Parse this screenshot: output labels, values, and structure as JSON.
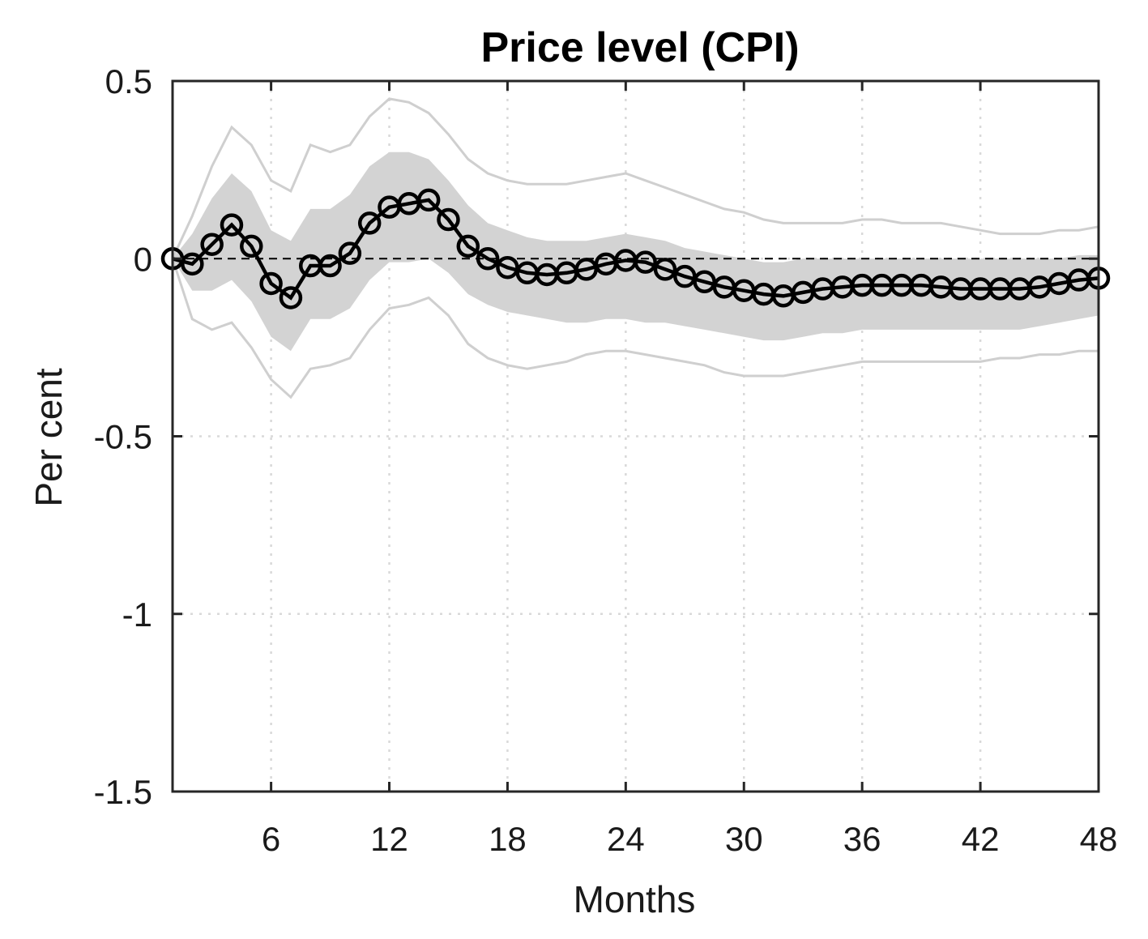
{
  "chart_data": {
    "type": "line",
    "title": "Price level (CPI)",
    "xlabel": "Months",
    "ylabel": "Per cent",
    "xlim": [
      1,
      48
    ],
    "ylim": [
      -1.5,
      0.5
    ],
    "xticks": [
      6,
      12,
      18,
      24,
      30,
      36,
      42,
      48
    ],
    "yticks": [
      0.5,
      0,
      -0.5,
      -1,
      -1.5
    ],
    "ytick_labels": [
      "0.5",
      "0",
      "-0.5",
      "-1",
      "-1.5"
    ],
    "grid": true,
    "zero_line": 0,
    "x": [
      1,
      2,
      3,
      4,
      5,
      6,
      7,
      8,
      9,
      10,
      11,
      12,
      13,
      14,
      15,
      16,
      17,
      18,
      19,
      20,
      21,
      22,
      23,
      24,
      25,
      26,
      27,
      28,
      29,
      30,
      31,
      32,
      33,
      34,
      35,
      36,
      37,
      38,
      39,
      40,
      41,
      42,
      43,
      44,
      45,
      46,
      47,
      48
    ],
    "series": [
      {
        "name": "point estimate",
        "marker": "circle",
        "values": [
          0.0,
          -0.015,
          0.04,
          0.095,
          0.035,
          -0.07,
          -0.11,
          -0.02,
          -0.02,
          0.015,
          0.1,
          0.145,
          0.155,
          0.165,
          0.11,
          0.035,
          0.0,
          -0.025,
          -0.04,
          -0.045,
          -0.04,
          -0.03,
          -0.015,
          -0.005,
          -0.01,
          -0.03,
          -0.05,
          -0.065,
          -0.08,
          -0.09,
          -0.1,
          -0.105,
          -0.095,
          -0.085,
          -0.08,
          -0.075,
          -0.075,
          -0.075,
          -0.075,
          -0.08,
          -0.085,
          -0.085,
          -0.085,
          -0.085,
          -0.08,
          -0.07,
          -0.06,
          -0.055
        ]
      },
      {
        "name": "inner band upper",
        "values": [
          0.0,
          0.07,
          0.17,
          0.24,
          0.19,
          0.08,
          0.05,
          0.14,
          0.14,
          0.18,
          0.26,
          0.3,
          0.3,
          0.28,
          0.22,
          0.15,
          0.1,
          0.08,
          0.06,
          0.05,
          0.05,
          0.05,
          0.06,
          0.07,
          0.06,
          0.05,
          0.03,
          0.02,
          0.01,
          0.0,
          -0.01,
          -0.01,
          0.0,
          0.0,
          0.0,
          0.0,
          0.0,
          0.0,
          0.0,
          0.0,
          0.0,
          0.0,
          0.0,
          0.0,
          0.0,
          0.0,
          0.01,
          0.01
        ]
      },
      {
        "name": "inner band lower",
        "values": [
          0.0,
          -0.09,
          -0.09,
          -0.06,
          -0.12,
          -0.22,
          -0.26,
          -0.17,
          -0.17,
          -0.14,
          -0.06,
          -0.01,
          -0.01,
          0.0,
          -0.04,
          -0.1,
          -0.13,
          -0.15,
          -0.16,
          -0.17,
          -0.18,
          -0.18,
          -0.17,
          -0.17,
          -0.18,
          -0.18,
          -0.19,
          -0.2,
          -0.21,
          -0.22,
          -0.23,
          -0.23,
          -0.22,
          -0.21,
          -0.21,
          -0.2,
          -0.2,
          -0.2,
          -0.2,
          -0.2,
          -0.2,
          -0.2,
          -0.2,
          -0.2,
          -0.19,
          -0.18,
          -0.17,
          -0.16
        ]
      },
      {
        "name": "outer band upper",
        "values": [
          0.0,
          0.12,
          0.26,
          0.37,
          0.32,
          0.22,
          0.19,
          0.32,
          0.3,
          0.32,
          0.4,
          0.45,
          0.44,
          0.41,
          0.35,
          0.28,
          0.24,
          0.22,
          0.21,
          0.21,
          0.21,
          0.22,
          0.23,
          0.24,
          0.22,
          0.2,
          0.18,
          0.16,
          0.14,
          0.13,
          0.11,
          0.1,
          0.1,
          0.1,
          0.1,
          0.11,
          0.11,
          0.1,
          0.1,
          0.1,
          0.09,
          0.08,
          0.07,
          0.07,
          0.07,
          0.08,
          0.08,
          0.09
        ]
      },
      {
        "name": "outer band lower",
        "values": [
          0.0,
          -0.17,
          -0.2,
          -0.18,
          -0.25,
          -0.34,
          -0.39,
          -0.31,
          -0.3,
          -0.28,
          -0.2,
          -0.14,
          -0.13,
          -0.11,
          -0.16,
          -0.24,
          -0.28,
          -0.3,
          -0.31,
          -0.3,
          -0.29,
          -0.27,
          -0.26,
          -0.26,
          -0.27,
          -0.28,
          -0.29,
          -0.3,
          -0.32,
          -0.33,
          -0.33,
          -0.33,
          -0.32,
          -0.31,
          -0.3,
          -0.29,
          -0.29,
          -0.29,
          -0.29,
          -0.29,
          -0.29,
          -0.29,
          -0.28,
          -0.28,
          -0.27,
          -0.27,
          -0.26,
          -0.26
        ]
      }
    ]
  },
  "colors": {
    "inner_band": "#d3d3d3",
    "outer_band": "#cfcfcf",
    "line": "#000000",
    "grid": "#d9d9d9",
    "axes": "#262626"
  }
}
